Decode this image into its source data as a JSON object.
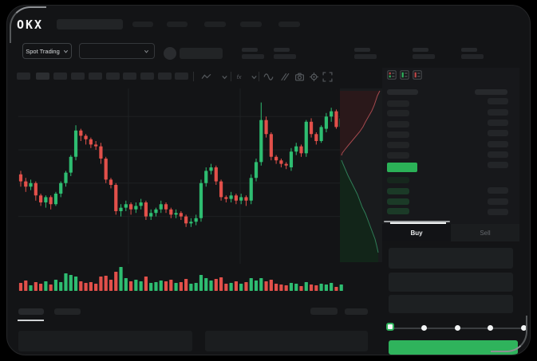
{
  "brand": {
    "logo": "OKX"
  },
  "header": {
    "market_selector_label": "Spot Trading"
  },
  "toolbar": {
    "timeframe_slots": 10,
    "icons": [
      "line-chart",
      "chevron-down",
      "indicator-fx",
      "chevron-down",
      "wave",
      "draw",
      "camera",
      "settings-gear",
      "fullscreen"
    ]
  },
  "order_book": {
    "mode_icons": [
      "book-both",
      "book-bids",
      "book-asks"
    ],
    "ask_rows": 6,
    "right_rows": 7,
    "bid_rows": 4,
    "bid_right_rows": 3,
    "price_bar_color": "#2BB157"
  },
  "order_panel": {
    "tabs": {
      "buy": "Buy",
      "sell": "Sell"
    },
    "active_tab": "Buy",
    "fields": 3,
    "slider": {
      "stops": 5,
      "active_stop": 0
    },
    "submit_color": "#2FB35C"
  },
  "colors": {
    "up": "#2EBD71",
    "down": "#E2504A",
    "grid": "#1e2022",
    "depth_ask_fill": "#2a181a",
    "depth_ask_line": "#a4494e",
    "depth_bid_fill": "#122519",
    "depth_bid_line": "#2f7d57"
  },
  "chart_data": [
    {
      "type": "candlestick",
      "title": "",
      "ylim": [
        0,
        100
      ],
      "note": "values are percent of pane height, OHLC",
      "candles": [
        [
          51,
          53,
          44,
          47
        ],
        [
          47,
          49,
          41,
          44
        ],
        [
          44,
          48,
          42,
          46
        ],
        [
          46,
          47,
          36,
          39
        ],
        [
          39,
          40,
          33,
          35
        ],
        [
          35,
          39,
          32,
          38
        ],
        [
          38,
          39,
          31,
          34
        ],
        [
          34,
          41,
          33,
          40
        ],
        [
          40,
          47,
          38,
          46
        ],
        [
          46,
          53,
          44,
          52
        ],
        [
          52,
          62,
          50,
          61
        ],
        [
          61,
          79,
          59,
          76
        ],
        [
          76,
          77,
          70,
          73
        ],
        [
          73,
          74,
          68,
          71
        ],
        [
          71,
          72,
          66,
          68
        ],
        [
          68,
          70,
          65,
          67
        ],
        [
          67,
          69,
          57,
          60
        ],
        [
          60,
          61,
          46,
          48
        ],
        [
          48,
          49,
          43,
          45
        ],
        [
          45,
          46,
          28,
          30
        ],
        [
          30,
          34,
          27,
          32
        ],
        [
          32,
          36,
          30,
          34
        ],
        [
          34,
          35,
          28,
          31
        ],
        [
          31,
          35,
          29,
          33
        ],
        [
          33,
          37,
          31,
          35
        ],
        [
          35,
          36,
          25,
          27
        ],
        [
          27,
          31,
          25,
          29
        ],
        [
          29,
          32,
          27,
          31
        ],
        [
          31,
          36,
          29,
          34
        ],
        [
          34,
          35,
          29,
          31
        ],
        [
          31,
          32,
          26,
          28
        ],
        [
          28,
          31,
          26,
          29
        ],
        [
          29,
          30,
          25,
          27
        ],
        [
          27,
          28,
          21,
          23
        ],
        [
          23,
          26,
          21,
          24
        ],
        [
          24,
          28,
          22,
          26
        ],
        [
          26,
          48,
          24,
          46
        ],
        [
          46,
          55,
          44,
          53
        ],
        [
          53,
          57,
          51,
          55
        ],
        [
          55,
          56,
          45,
          47
        ],
        [
          47,
          48,
          36,
          38
        ],
        [
          38,
          39,
          35,
          37
        ],
        [
          37,
          41,
          35,
          39
        ],
        [
          39,
          40,
          34,
          36
        ],
        [
          36,
          40,
          34,
          38
        ],
        [
          38,
          39,
          33,
          36
        ],
        [
          36,
          51,
          34,
          49
        ],
        [
          49,
          60,
          47,
          58
        ],
        [
          58,
          92,
          56,
          82
        ],
        [
          82,
          84,
          72,
          74
        ],
        [
          74,
          75,
          59,
          61
        ],
        [
          61,
          62,
          57,
          59
        ],
        [
          59,
          60,
          55,
          57
        ],
        [
          57,
          58,
          54,
          56
        ],
        [
          55,
          66,
          53,
          64
        ],
        [
          64,
          69,
          62,
          67
        ],
        [
          67,
          68,
          61,
          63
        ],
        [
          63,
          82,
          61,
          81
        ],
        [
          81,
          83,
          72,
          74
        ],
        [
          74,
          75,
          68,
          70
        ],
        [
          70,
          79,
          69,
          78
        ],
        [
          77,
          86,
          75,
          84
        ],
        [
          84,
          89,
          81,
          87
        ],
        [
          87,
          88,
          77,
          78
        ],
        [
          78,
          84,
          75,
          83
        ]
      ],
      "h_gridlines_pct": [
        84,
        65,
        46,
        27
      ],
      "v_gridlines_x": [
        138,
        278
      ]
    },
    {
      "type": "bar",
      "title": "volume",
      "values": [
        10,
        13,
        7,
        11,
        9,
        12,
        8,
        14,
        11,
        22,
        20,
        18,
        12,
        10,
        11,
        9,
        18,
        19,
        14,
        24,
        30,
        16,
        12,
        14,
        12,
        18,
        10,
        11,
        13,
        12,
        14,
        10,
        11,
        15,
        9,
        10,
        20,
        16,
        13,
        15,
        17,
        9,
        10,
        12,
        9,
        11,
        16,
        13,
        16,
        12,
        14,
        9,
        8,
        7,
        10,
        9,
        6,
        11,
        8,
        7,
        9,
        8,
        10,
        5,
        8
      ]
    },
    {
      "type": "area",
      "title": "depth",
      "asks_curve": [
        [
          50,
          3
        ],
        [
          47,
          9
        ],
        [
          45,
          15
        ],
        [
          43,
          21
        ],
        [
          40,
          28
        ],
        [
          36,
          35
        ],
        [
          32,
          42
        ],
        [
          29,
          48
        ],
        [
          25,
          54
        ],
        [
          20,
          60
        ],
        [
          15,
          66
        ],
        [
          10,
          72
        ],
        [
          6,
          77
        ],
        [
          3,
          81
        ],
        [
          2,
          84
        ]
      ],
      "bids_curve": [
        [
          2,
          90
        ],
        [
          4,
          95
        ],
        [
          7,
          102
        ],
        [
          10,
          109
        ],
        [
          14,
          117
        ],
        [
          18,
          125
        ],
        [
          22,
          133
        ],
        [
          25,
          141
        ],
        [
          28,
          149
        ],
        [
          32,
          157
        ],
        [
          35,
          165
        ],
        [
          38,
          173
        ],
        [
          41,
          181
        ],
        [
          44,
          189
        ],
        [
          46,
          197
        ],
        [
          48,
          206
        ]
      ]
    }
  ]
}
